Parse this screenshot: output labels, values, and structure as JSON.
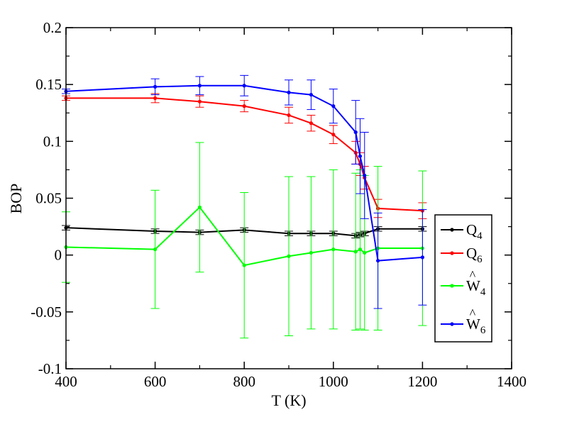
{
  "chart_data": {
    "type": "line",
    "title": "",
    "xlabel": "T (K)",
    "ylabel": "BOP",
    "xlim": [
      400,
      1400
    ],
    "ylim": [
      -0.1,
      0.2
    ],
    "xticks": [
      400,
      600,
      800,
      1000,
      1200,
      1400
    ],
    "xtick_labels": [
      "400",
      "600",
      "800",
      "1000",
      "1200",
      "1400"
    ],
    "yticks": [
      -0.1,
      -0.05,
      0,
      0.05,
      0.1,
      0.15,
      0.2
    ],
    "ytick_labels": [
      "-0.1",
      "-0.05",
      "0",
      "0.05",
      "0.1",
      "0.15",
      "0.2"
    ],
    "grid": false,
    "legend_position": "lower-right",
    "series": [
      {
        "name": "Q4",
        "legend_main": "Q",
        "legend_sub": "4",
        "legend_hat": false,
        "color": "#000000",
        "points": [
          {
            "x": 400,
            "y": 0.024,
            "err": 0.002
          },
          {
            "x": 600,
            "y": 0.021,
            "err": 0.002
          },
          {
            "x": 700,
            "y": 0.02,
            "err": 0.002
          },
          {
            "x": 800,
            "y": 0.022,
            "err": 0.002
          },
          {
            "x": 900,
            "y": 0.019,
            "err": 0.002
          },
          {
            "x": 950,
            "y": 0.019,
            "err": 0.002
          },
          {
            "x": 1000,
            "y": 0.019,
            "err": 0.002
          },
          {
            "x": 1050,
            "y": 0.017,
            "err": 0.002
          },
          {
            "x": 1060,
            "y": 0.018,
            "err": 0.002
          },
          {
            "x": 1070,
            "y": 0.019,
            "err": 0.002
          },
          {
            "x": 1100,
            "y": 0.023,
            "err": 0.002
          },
          {
            "x": 1200,
            "y": 0.023,
            "err": 0.002
          }
        ]
      },
      {
        "name": "Q6",
        "legend_main": "Q",
        "legend_sub": "6",
        "legend_hat": false,
        "color": "#ff0000",
        "points": [
          {
            "x": 400,
            "y": 0.138,
            "err": 0.002
          },
          {
            "x": 600,
            "y": 0.138,
            "err": 0.004
          },
          {
            "x": 700,
            "y": 0.135,
            "err": 0.005
          },
          {
            "x": 800,
            "y": 0.131,
            "err": 0.005
          },
          {
            "x": 900,
            "y": 0.123,
            "err": 0.007
          },
          {
            "x": 950,
            "y": 0.116,
            "err": 0.007
          },
          {
            "x": 1000,
            "y": 0.106,
            "err": 0.008
          },
          {
            "x": 1050,
            "y": 0.09,
            "err": 0.01
          },
          {
            "x": 1060,
            "y": 0.08,
            "err": 0.01
          },
          {
            "x": 1070,
            "y": 0.068,
            "err": 0.01
          },
          {
            "x": 1100,
            "y": 0.041,
            "err": 0.008
          },
          {
            "x": 1200,
            "y": 0.039,
            "err": 0.007
          }
        ]
      },
      {
        "name": "W4 hat",
        "legend_main": "W",
        "legend_sub": "4",
        "legend_hat": true,
        "color": "#00ff00",
        "points": [
          {
            "x": 400,
            "y": 0.007,
            "err": 0.031
          },
          {
            "x": 600,
            "y": 0.005,
            "err": 0.052
          },
          {
            "x": 700,
            "y": 0.042,
            "err": 0.057
          },
          {
            "x": 800,
            "y": -0.009,
            "err": 0.064
          },
          {
            "x": 900,
            "y": -0.001,
            "err": 0.07
          },
          {
            "x": 950,
            "y": 0.002,
            "err": 0.067
          },
          {
            "x": 1000,
            "y": 0.005,
            "err": 0.07
          },
          {
            "x": 1050,
            "y": 0.003,
            "err": 0.069
          },
          {
            "x": 1060,
            "y": 0.005,
            "err": 0.07
          },
          {
            "x": 1070,
            "y": 0.002,
            "err": 0.068
          },
          {
            "x": 1100,
            "y": 0.006,
            "err": 0.072
          },
          {
            "x": 1200,
            "y": 0.006,
            "err": 0.068
          }
        ]
      },
      {
        "name": "W6 hat",
        "legend_main": "W",
        "legend_sub": "6",
        "legend_hat": true,
        "color": "#0000ff",
        "points": [
          {
            "x": 400,
            "y": 0.144,
            "err": 0.002
          },
          {
            "x": 600,
            "y": 0.148,
            "err": 0.007
          },
          {
            "x": 700,
            "y": 0.149,
            "err": 0.008
          },
          {
            "x": 800,
            "y": 0.149,
            "err": 0.009
          },
          {
            "x": 900,
            "y": 0.143,
            "err": 0.011
          },
          {
            "x": 950,
            "y": 0.141,
            "err": 0.013
          },
          {
            "x": 1000,
            "y": 0.131,
            "err": 0.015
          },
          {
            "x": 1050,
            "y": 0.108,
            "err": 0.028
          },
          {
            "x": 1060,
            "y": 0.087,
            "err": 0.033
          },
          {
            "x": 1070,
            "y": 0.07,
            "err": 0.038
          },
          {
            "x": 1100,
            "y": -0.005,
            "err": 0.042
          },
          {
            "x": 1200,
            "y": -0.002,
            "err": 0.042
          }
        ]
      }
    ]
  }
}
